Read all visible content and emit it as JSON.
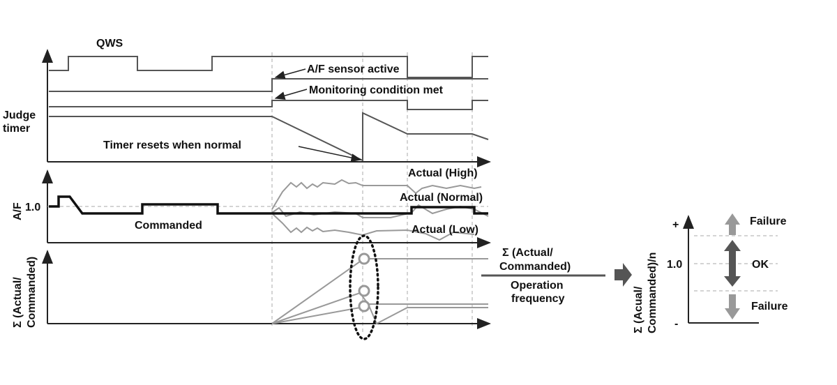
{
  "timing": {
    "qws_label": "QWS",
    "af_sensor_label": "A/F sensor active",
    "monitoring_label": "Monitoring condition met",
    "judge_timer_label": [
      "Judge",
      "timer"
    ],
    "timer_reset_label": "Timer resets when normal"
  },
  "af_panel": {
    "ylabel": "A/F",
    "ref_tick": "1.0",
    "commanded_label": "Commanded",
    "high_label": "Actual (High)",
    "normal_label": "Actual (Normal)",
    "low_label": "Actual (Low)"
  },
  "sum_panel": {
    "ylabel": [
      "Σ (Actual/",
      "Commanded)"
    ]
  },
  "formula": {
    "numerator": [
      "Σ  (Actual/",
      "Commanded)"
    ],
    "denominator": [
      "Operation",
      "frequency"
    ]
  },
  "judgement": {
    "ylabel": [
      "Σ (Acual/",
      "Commanded)/n"
    ],
    "plus": "+",
    "ref_tick": "1.0",
    "minus": "-",
    "upper_zone": "Failure",
    "middle_zone": "OK",
    "lower_zone": "Failure"
  },
  "colors": {
    "light_arrow": "#999999",
    "dark_arrow": "#555555"
  }
}
